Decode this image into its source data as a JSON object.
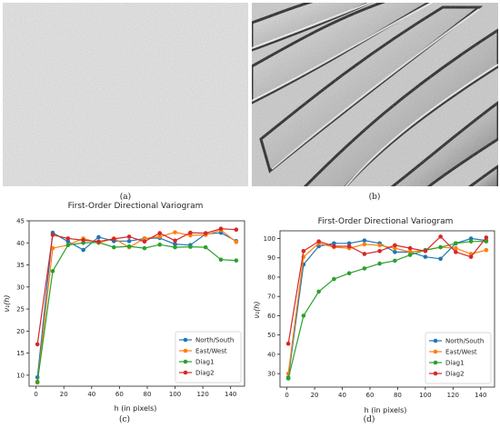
{
  "captions": {
    "a": "(a)",
    "b": "(b)",
    "c": "(c)",
    "d": "(d)"
  },
  "chart_data": [
    {
      "type": "line",
      "title": "First-Order Directional Variogram",
      "xlabel": "h (in pixels)",
      "ylabel": "ν₁(h)",
      "xlim": [
        -5,
        150
      ],
      "ylim": [
        7.5,
        45
      ],
      "xticks": [
        0,
        20,
        40,
        60,
        80,
        100,
        120,
        140
      ],
      "yticks": [
        10,
        15,
        20,
        25,
        30,
        35,
        40,
        45
      ],
      "grid": false,
      "legend": "bottom-right",
      "x": [
        1,
        12,
        23,
        34,
        45,
        56,
        67,
        78,
        89,
        100,
        111,
        122,
        133,
        144
      ],
      "series": [
        {
          "name": "North/South",
          "color": "#1f77b4",
          "values": [
            9.5,
            42.3,
            40.3,
            38.4,
            41.3,
            40.4,
            40.4,
            41.0,
            41.1,
            39.7,
            39.5,
            42.0,
            42.3,
            40.4
          ]
        },
        {
          "name": "East/West",
          "color": "#ff7f0e",
          "values": [
            8.3,
            38.8,
            39.5,
            41.0,
            40.0,
            41.0,
            39.0,
            41.0,
            41.4,
            42.4,
            41.7,
            41.8,
            42.9,
            40.2
          ]
        },
        {
          "name": "Diag1",
          "color": "#2ca02c",
          "values": [
            8.5,
            33.6,
            39.5,
            40.0,
            40.1,
            39.0,
            39.2,
            38.8,
            39.6,
            39.0,
            39.1,
            39.0,
            36.2,
            36.0
          ]
        },
        {
          "name": "Diag2",
          "color": "#d62728",
          "values": [
            17.0,
            41.8,
            41.0,
            40.6,
            40.3,
            40.9,
            41.4,
            40.3,
            42.2,
            40.5,
            42.3,
            42.2,
            43.2,
            43.0
          ]
        }
      ]
    },
    {
      "type": "line",
      "title": "First-Order Directional Variogram",
      "xlabel": "h (in pixels)",
      "ylabel": "ν₁(h)",
      "xlim": [
        -5,
        150
      ],
      "ylim": [
        23,
        104
      ],
      "xticks": [
        0,
        20,
        40,
        60,
        80,
        100,
        120,
        140
      ],
      "yticks": [
        30,
        40,
        50,
        60,
        70,
        80,
        90,
        100
      ],
      "grid": false,
      "legend": "bottom-right",
      "x": [
        1,
        12,
        23,
        34,
        45,
        56,
        67,
        78,
        89,
        100,
        111,
        122,
        133,
        144
      ],
      "series": [
        {
          "name": "North/South",
          "color": "#1f77b4",
          "values": [
            28.0,
            86.5,
            96.0,
            97.5,
            97.5,
            99.0,
            97.5,
            93.0,
            93.0,
            90.5,
            89.5,
            97.5,
            100.0,
            99.0
          ]
        },
        {
          "name": "East/West",
          "color": "#ff7f0e",
          "values": [
            30.0,
            90.5,
            97.5,
            95.5,
            95.0,
            97.0,
            96.5,
            95.0,
            93.0,
            94.0,
            95.5,
            95.0,
            92.0,
            94.0
          ]
        },
        {
          "name": "Diag1",
          "color": "#2ca02c",
          "values": [
            27.5,
            60.0,
            72.5,
            79.0,
            82.0,
            84.5,
            87.0,
            88.5,
            91.5,
            94.0,
            95.5,
            97.5,
            98.5,
            98.5
          ]
        },
        {
          "name": "Diag2",
          "color": "#d62728",
          "values": [
            45.5,
            93.5,
            98.5,
            96.0,
            96.0,
            92.0,
            93.5,
            96.5,
            95.0,
            93.5,
            101.0,
            93.0,
            90.5,
            100.5
          ]
        }
      ]
    }
  ],
  "icons": {
    "a": "fine-texture-photo",
    "b": "ridged-texture-photo"
  }
}
